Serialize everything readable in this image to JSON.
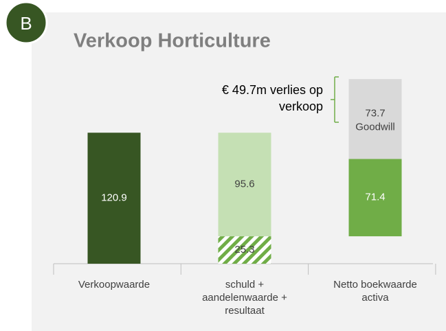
{
  "chart_data": {
    "type": "waterfall",
    "badge": "B",
    "title": "Verkoop Horticulture",
    "annotation": "€ 49.7m verlies op verkoop",
    "categories": [
      "Verkoopwaarde",
      "schuld + aandelenwaarde + resultaat",
      "Netto boekwaarde activa"
    ],
    "series": [
      {
        "color": "#375623",
        "values": [
          120.9,
          null,
          null
        ]
      },
      {
        "color": "#70ad47",
        "pattern": "hatch",
        "values": [
          null,
          25.3,
          null
        ]
      },
      {
        "color": "#c5e0b4",
        "values": [
          null,
          95.6,
          null
        ]
      },
      {
        "color": "#70ad47",
        "values": [
          null,
          null,
          71.4
        ]
      },
      {
        "name": "Goodwill",
        "color": "#d9d9d9",
        "values": [
          null,
          null,
          73.7
        ]
      }
    ],
    "ylim": [
      0,
      180
    ]
  }
}
